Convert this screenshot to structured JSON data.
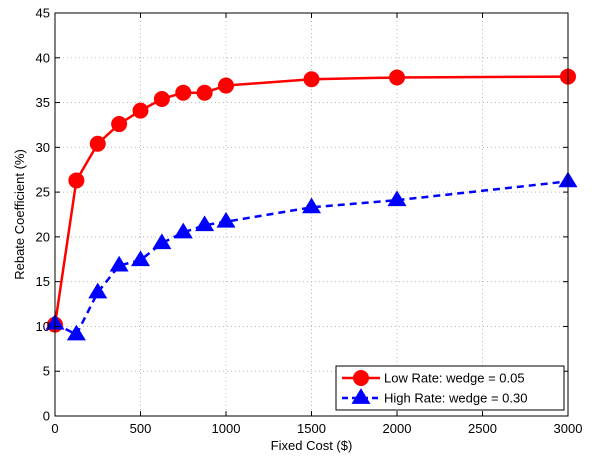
{
  "chart_data": {
    "type": "line",
    "title": "",
    "xlabel": "Fixed Cost ($)",
    "ylabel": "Rebate Coefficient (%)",
    "xlim": [
      0,
      3000
    ],
    "ylim": [
      0,
      45
    ],
    "xticks": [
      0,
      500,
      1000,
      1500,
      2000,
      2500,
      3000
    ],
    "yticks": [
      0,
      5,
      10,
      15,
      20,
      25,
      30,
      35,
      40,
      45
    ],
    "grid": true,
    "legend_position": "bottom-right",
    "series": [
      {
        "name": "Low Rate: wedge = 0.05",
        "color": "#ff0000",
        "line_style": "solid",
        "marker": "circle",
        "x": [
          0,
          125,
          250,
          375,
          500,
          625,
          750,
          875,
          1000,
          1500,
          2000,
          3000
        ],
        "y": [
          10.2,
          26.3,
          30.4,
          32.6,
          34.1,
          35.4,
          36.1,
          36.1,
          36.9,
          37.6,
          37.8,
          37.9
        ]
      },
      {
        "name": "High Rate: wedge = 0.30",
        "color": "#0000ff",
        "line_style": "dashed",
        "marker": "triangle",
        "x": [
          0,
          125,
          250,
          375,
          500,
          625,
          750,
          875,
          1000,
          1500,
          2000,
          3000
        ],
        "y": [
          10.3,
          9.1,
          13.8,
          16.8,
          17.4,
          19.3,
          20.5,
          21.3,
          21.7,
          23.3,
          24.1,
          26.2
        ]
      }
    ]
  }
}
